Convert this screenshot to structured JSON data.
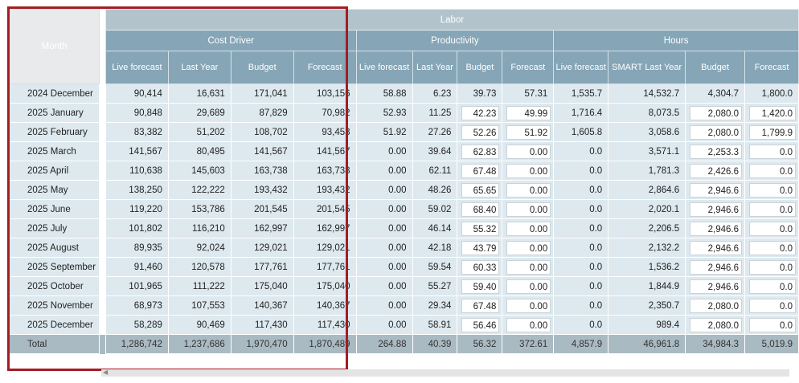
{
  "header": {
    "month_label": "Month",
    "labor_label": "Labor",
    "groups": [
      "Cost Driver",
      "Productivity",
      "Hours"
    ],
    "columns": [
      "Live forecast",
      "Last Year",
      "Budget",
      "Forecast",
      "Live forecast",
      "Last Year",
      "Budget",
      "Forecast",
      "Live forecast",
      "SMART Last Year",
      "Budget",
      "Forecast"
    ]
  },
  "rows": [
    {
      "month": "2024 December",
      "values": [
        "90,414",
        "16,631",
        "171,041",
        "103,156",
        "58.88",
        "6.23",
        "39.73",
        "57.31",
        "1,535.7",
        "14,532.7",
        "4,304.7",
        "1,800.0"
      ]
    },
    {
      "month": "2025 January",
      "values": [
        "90,848",
        "29,689",
        "87,829",
        "70,982",
        "52.93",
        "11.25",
        "42.23",
        "49.99",
        "1,716.4",
        "8,073.5",
        "2,080.0",
        "1,420.0"
      ]
    },
    {
      "month": "2025 February",
      "values": [
        "83,382",
        "51,202",
        "108,702",
        "93,453",
        "51.92",
        "27.26",
        "52.26",
        "51.92",
        "1,605.8",
        "3,058.6",
        "2,080.0",
        "1,799.9"
      ]
    },
    {
      "month": "2025 March",
      "values": [
        "141,567",
        "80,495",
        "141,567",
        "141,567",
        "0.00",
        "39.64",
        "62.83",
        "0.00",
        "0.0",
        "3,571.1",
        "2,253.3",
        "0.0"
      ]
    },
    {
      "month": "2025 April",
      "values": [
        "110,638",
        "145,603",
        "163,738",
        "163,738",
        "0.00",
        "62.11",
        "67.48",
        "0.00",
        "0.0",
        "1,781.3",
        "2,426.6",
        "0.0"
      ]
    },
    {
      "month": "2025 May",
      "values": [
        "138,250",
        "122,222",
        "193,432",
        "193,432",
        "0.00",
        "48.26",
        "65.65",
        "0.00",
        "0.0",
        "2,864.6",
        "2,946.6",
        "0.0"
      ]
    },
    {
      "month": "2025 June",
      "values": [
        "119,220",
        "153,786",
        "201,545",
        "201,545",
        "0.00",
        "59.02",
        "68.40",
        "0.00",
        "0.0",
        "2,020.1",
        "2,946.6",
        "0.0"
      ]
    },
    {
      "month": "2025 July",
      "values": [
        "101,802",
        "116,210",
        "162,997",
        "162,997",
        "0.00",
        "46.14",
        "55.32",
        "0.00",
        "0.0",
        "2,206.5",
        "2,946.6",
        "0.0"
      ]
    },
    {
      "month": "2025 August",
      "values": [
        "89,935",
        "92,024",
        "129,021",
        "129,021",
        "0.00",
        "42.18",
        "43.79",
        "0.00",
        "0.0",
        "2,132.2",
        "2,946.6",
        "0.0"
      ]
    },
    {
      "month": "2025 September",
      "values": [
        "91,460",
        "120,578",
        "177,761",
        "177,761",
        "0.00",
        "59.54",
        "60.33",
        "0.00",
        "0.0",
        "1,536.2",
        "2,946.6",
        "0.0"
      ]
    },
    {
      "month": "2025 October",
      "values": [
        "101,965",
        "111,222",
        "175,040",
        "175,040",
        "0.00",
        "55.27",
        "59.40",
        "0.00",
        "0.0",
        "1,844.9",
        "2,946.6",
        "0.0"
      ]
    },
    {
      "month": "2025 November",
      "values": [
        "68,973",
        "107,553",
        "140,367",
        "140,367",
        "0.00",
        "29.34",
        "67.48",
        "0.00",
        "0.0",
        "2,350.7",
        "2,080.0",
        "0.0"
      ]
    },
    {
      "month": "2025 December",
      "values": [
        "58,289",
        "90,469",
        "117,430",
        "117,430",
        "0.00",
        "58.91",
        "56.46",
        "0.00",
        "0.0",
        "989.4",
        "2,080.0",
        "0.0"
      ]
    }
  ],
  "total": {
    "label": "Total",
    "values": [
      "1,286,742",
      "1,237,686",
      "1,970,470",
      "1,870,489",
      "264.88",
      "40.39",
      "56.32",
      "372.61",
      "4,857.9",
      "46,961.8",
      "34,984.3",
      "5,019.9"
    ]
  },
  "editable_columns": [
    6,
    7,
    10,
    11
  ],
  "colors": {
    "highlight": "#a31d24",
    "header": "#86a5b6",
    "labor_header": "#b3c3cb",
    "row_bg": "#dde9ef",
    "total_bg": "#aabac3"
  }
}
